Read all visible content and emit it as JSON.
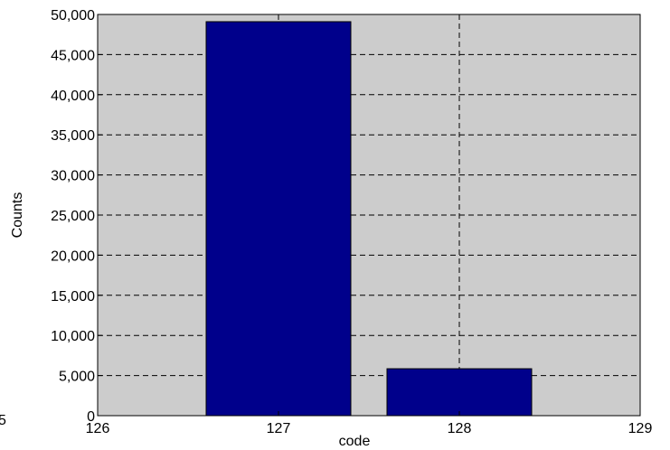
{
  "chart_data": {
    "type": "bar",
    "x": [
      127,
      128
    ],
    "values": [
      49100,
      5850
    ],
    "bar_width": 0.8,
    "xlim": [
      126,
      129
    ],
    "ylim": [
      0,
      50000
    ],
    "xticks": [
      "126",
      "127",
      "128",
      "129"
    ],
    "yticks": [
      "0",
      "5,000",
      "10,000",
      "15,000",
      "20,000",
      "25,000",
      "30,000",
      "35,000",
      "40,000",
      "45,000",
      "50,000"
    ],
    "xlabel": "code",
    "ylabel": "Counts",
    "grid": true,
    "grid_style": "dashed",
    "colors": {
      "bar_fill": "#00008B",
      "bar_edge": "#000000",
      "plot_background": "#CCCCCC",
      "grid": "#000000"
    }
  },
  "clipped_text": "5"
}
